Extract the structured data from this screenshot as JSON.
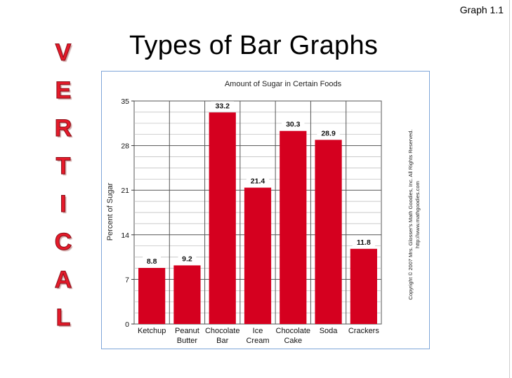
{
  "slide": {
    "graph_label": "Graph 1.1",
    "title": "Types of Bar Graphs",
    "side_word": [
      "V",
      "E",
      "R",
      "T",
      "I",
      "C",
      "A",
      "L"
    ]
  },
  "colors": {
    "bar": "#d5001f",
    "accent_letters": "#e51a2a"
  },
  "copyright": {
    "line1": "Copyright © 2007 Mrs. Glosser's Math Goodies, Inc. All Rights Reserved.",
    "line2": "http://www.mathgoodies.com"
  },
  "chart_data": {
    "type": "bar",
    "title": "Amount of Sugar in Certain Foods",
    "xlabel": "",
    "ylabel": "Percent of Sugar",
    "ylim": [
      0,
      35
    ],
    "yticks": [
      0,
      7,
      14,
      21,
      28,
      35
    ],
    "grid": true,
    "categories": [
      [
        "Ketchup"
      ],
      [
        "Peanut",
        "Butter"
      ],
      [
        "Chocolate",
        "Bar"
      ],
      [
        "Ice",
        "Cream"
      ],
      [
        "Chocolate",
        "Cake"
      ],
      [
        "Soda"
      ],
      [
        "Crackers"
      ]
    ],
    "values": [
      8.8,
      9.2,
      33.2,
      21.4,
      30.3,
      28.9,
      11.8
    ],
    "value_labels": [
      "8.8",
      "9.2",
      "33.2",
      "21.4",
      "30.3",
      "28.9",
      "11.8"
    ]
  }
}
